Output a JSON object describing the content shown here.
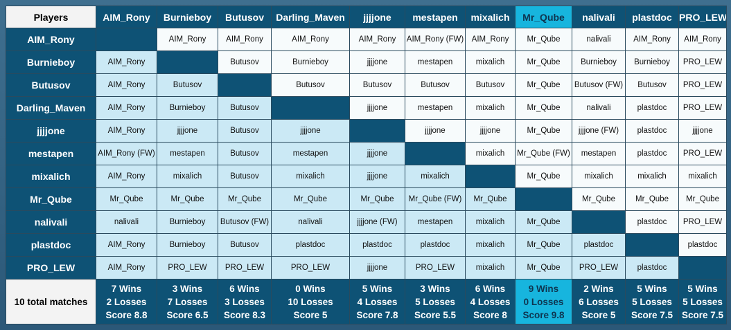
{
  "corner_label": "Players",
  "total_label": "10 total matches",
  "players": [
    "AIM_Rony",
    "Burnieboy",
    "Butusov",
    "Darling_Maven",
    "jjjjone",
    "mestapen",
    "mixalich",
    "Mr_Qube",
    "nalivali",
    "plastdoc",
    "PRO_LEW"
  ],
  "highlight_index": 7,
  "colors": {
    "header": "#0e5275",
    "highlight": "#17b5de",
    "lower_cell": "#cbe9f5",
    "upper_cell": "#f7fbfc"
  },
  "matrix": [
    [
      null,
      "AIM_Rony",
      "AIM_Rony",
      "AIM_Rony",
      "AIM_Rony",
      "AIM_Rony (FW)",
      "AIM_Rony",
      "Mr_Qube",
      "nalivali",
      "AIM_Rony",
      "AIM_Rony"
    ],
    [
      "AIM_Rony",
      null,
      "Butusov",
      "Burnieboy",
      "jjjjone",
      "mestapen",
      "mixalich",
      "Mr_Qube",
      "Burnieboy",
      "Burnieboy",
      "PRO_LEW"
    ],
    [
      "AIM_Rony",
      "Butusov",
      null,
      "Butusov",
      "Butusov",
      "Butusov",
      "Butusov",
      "Mr_Qube",
      "Butusov (FW)",
      "Butusov",
      "PRO_LEW"
    ],
    [
      "AIM_Rony",
      "Burnieboy",
      "Butusov",
      null,
      "jjjjone",
      "mestapen",
      "mixalich",
      "Mr_Qube",
      "nalivali",
      "plastdoc",
      "PRO_LEW"
    ],
    [
      "AIM_Rony",
      "jjjjone",
      "Butusov",
      "jjjjone",
      null,
      "jjjjone",
      "jjjjone",
      "Mr_Qube",
      "jjjjone (FW)",
      "plastdoc",
      "jjjjone"
    ],
    [
      "AIM_Rony (FW)",
      "mestapen",
      "Butusov",
      "mestapen",
      "jjjjone",
      null,
      "mixalich",
      "Mr_Qube (FW)",
      "mestapen",
      "plastdoc",
      "PRO_LEW"
    ],
    [
      "AIM_Rony",
      "mixalich",
      "Butusov",
      "mixalich",
      "jjjjone",
      "mixalich",
      null,
      "Mr_Qube",
      "mixalich",
      "mixalich",
      "mixalich"
    ],
    [
      "Mr_Qube",
      "Mr_Qube",
      "Mr_Qube",
      "Mr_Qube",
      "Mr_Qube",
      "Mr_Qube (FW)",
      "Mr_Qube",
      null,
      "Mr_Qube",
      "Mr_Qube",
      "Mr_Qube"
    ],
    [
      "nalivali",
      "Burnieboy",
      "Butusov (FW)",
      "nalivali",
      "jjjjone (FW)",
      "mestapen",
      "mixalich",
      "Mr_Qube",
      null,
      "plastdoc",
      "PRO_LEW"
    ],
    [
      "AIM_Rony",
      "Burnieboy",
      "Butusov",
      "plastdoc",
      "plastdoc",
      "plastdoc",
      "mixalich",
      "Mr_Qube",
      "plastdoc",
      null,
      "plastdoc"
    ],
    [
      "AIM_Rony",
      "PRO_LEW",
      "PRO_LEW",
      "PRO_LEW",
      "jjjjone",
      "PRO_LEW",
      "mixalich",
      "Mr_Qube",
      "PRO_LEW",
      "plastdoc",
      null
    ]
  ],
  "stats": [
    {
      "wins": "7 Wins",
      "losses": "2 Losses",
      "score": "Score 8.8"
    },
    {
      "wins": "3 Wins",
      "losses": "7 Losses",
      "score": "Score 6.5"
    },
    {
      "wins": "6 Wins",
      "losses": "3 Losses",
      "score": "Score 8.3"
    },
    {
      "wins": "0 Wins",
      "losses": "10 Losses",
      "score": "Score 5"
    },
    {
      "wins": "5 Wins",
      "losses": "4 Losses",
      "score": "Score 7.8"
    },
    {
      "wins": "3 Wins",
      "losses": "5 Losses",
      "score": "Score 5.5"
    },
    {
      "wins": "6 Wins",
      "losses": "4 Losses",
      "score": "Score 8"
    },
    {
      "wins": "9 Wins",
      "losses": "0 Losses",
      "score": "Score 9.8"
    },
    {
      "wins": "2 Wins",
      "losses": "6 Losses",
      "score": "Score 5"
    },
    {
      "wins": "5 Wins",
      "losses": "5 Losses",
      "score": "Score 7.5"
    },
    {
      "wins": "5 Wins",
      "losses": "5 Losses",
      "score": "Score 7.5"
    }
  ]
}
